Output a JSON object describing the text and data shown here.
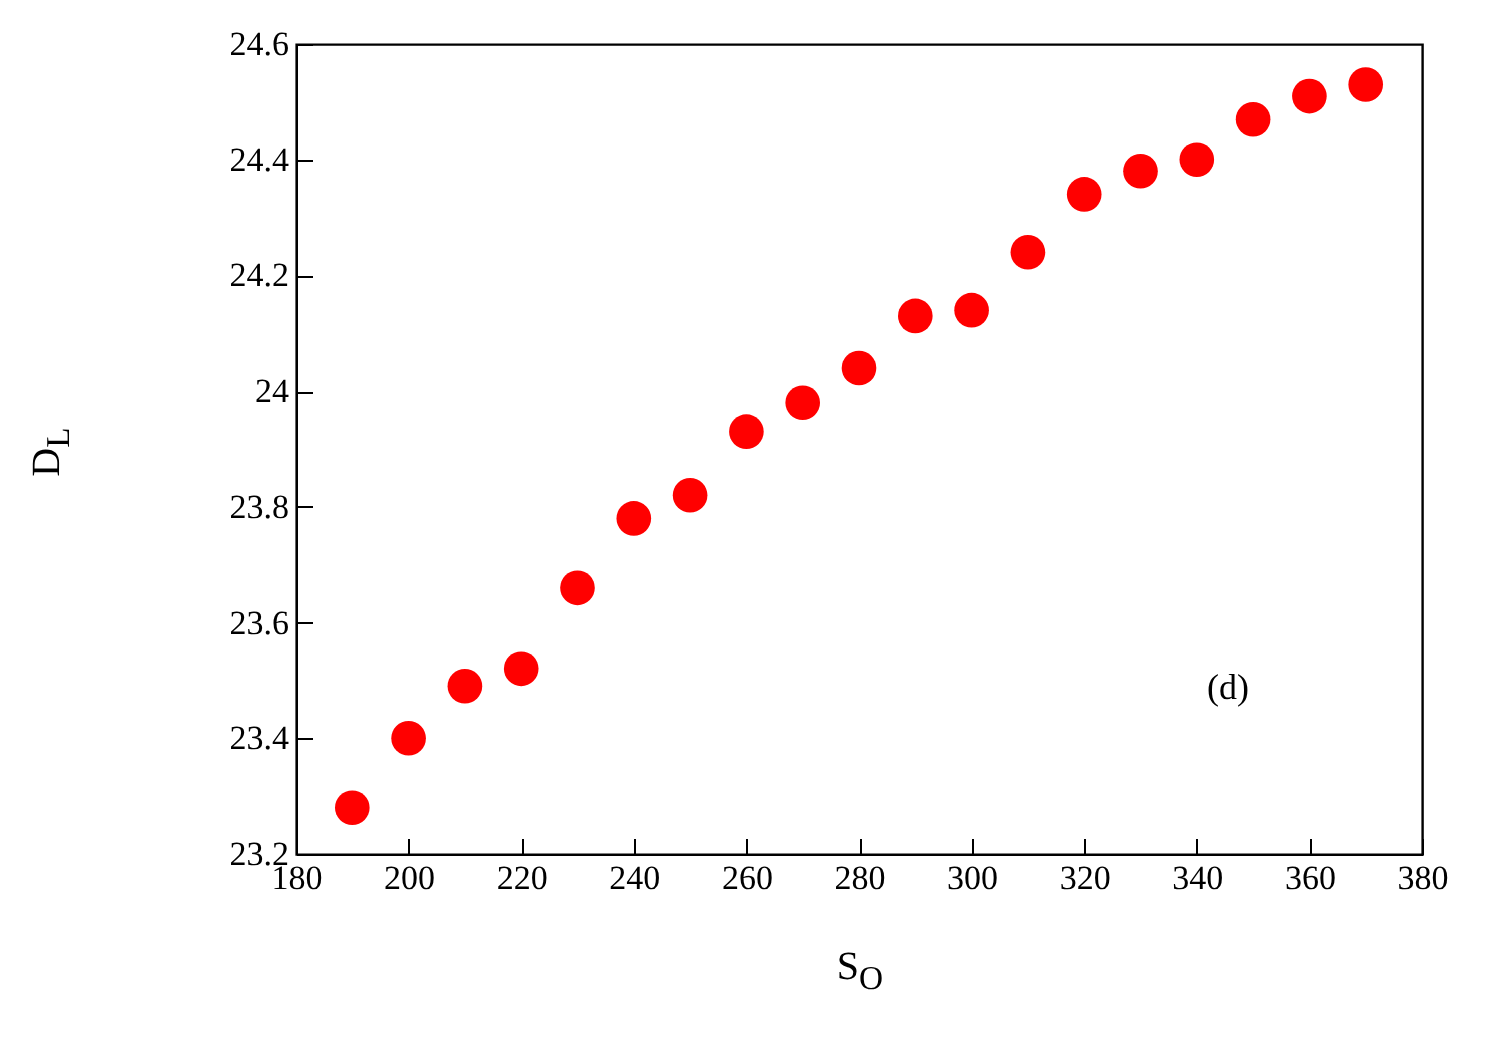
{
  "chart_data": {
    "type": "scatter",
    "xlabel": "S$_{O}$",
    "ylabel": "D$_{L}$",
    "x": [
      190,
      200,
      210,
      220,
      230,
      240,
      250,
      260,
      270,
      280,
      290,
      300,
      310,
      320,
      330,
      340,
      350,
      360,
      370
    ],
    "series": [
      {
        "color": "#ff0000",
        "values": [
          23.28,
          23.4,
          23.49,
          23.52,
          23.66,
          23.78,
          23.82,
          23.93,
          23.98,
          24.04,
          24.13,
          24.14,
          24.24,
          24.34,
          24.38,
          24.4,
          24.47,
          24.51,
          24.53
        ]
      }
    ],
    "xlim": [
      180,
      380
    ],
    "xticks": [
      180,
      200,
      220,
      240,
      260,
      280,
      300,
      320,
      340,
      360,
      380
    ],
    "ylim": [
      23.2,
      24.6
    ],
    "yticks": [
      23.2,
      23.4,
      23.6,
      23.8,
      24,
      24.2,
      24.4,
      24.6
    ],
    "annotations": [
      "(d)"
    ],
    "grid": false,
    "marker": "circle"
  }
}
